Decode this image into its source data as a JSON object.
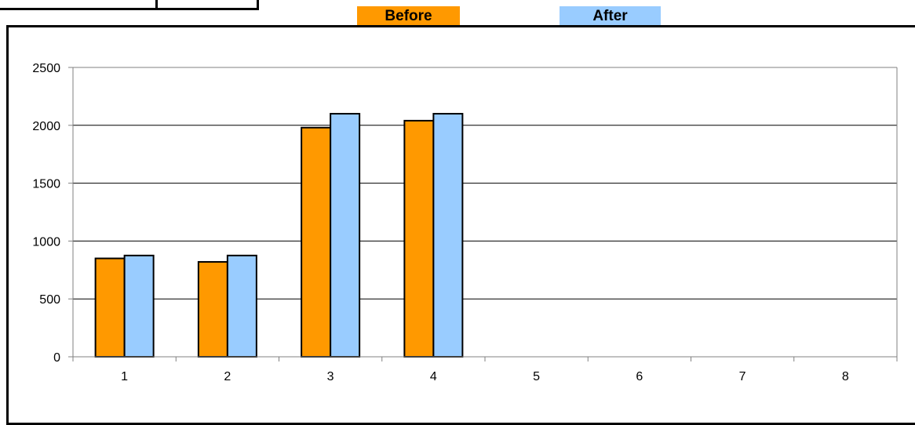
{
  "colors": {
    "before": "#FF9900",
    "after": "#99CCFF",
    "axis": "#808080",
    "grid": "#000000",
    "bar_border": "#000000"
  },
  "legend": {
    "before_label": "Before",
    "after_label": "After"
  },
  "chart_data": {
    "type": "bar",
    "title": "",
    "xlabel": "",
    "ylabel": "",
    "categories": [
      "1",
      "2",
      "3",
      "4",
      "5",
      "6",
      "7",
      "8"
    ],
    "series": [
      {
        "name": "Before",
        "values": [
          850,
          820,
          1980,
          2040,
          null,
          null,
          null,
          null
        ]
      },
      {
        "name": "After",
        "values": [
          875,
          875,
          2100,
          2100,
          null,
          null,
          null,
          null
        ]
      }
    ],
    "ylim": [
      0,
      2500
    ],
    "yticks": [
      "0",
      "500",
      "1000",
      "1500",
      "2000",
      "2500"
    ],
    "grid": true,
    "legend_position": "top-center"
  }
}
